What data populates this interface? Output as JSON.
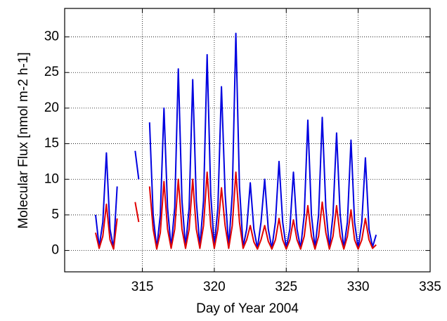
{
  "chart_data": {
    "type": "line",
    "xlabel": "Day of Year 2004",
    "ylabel": "Molecular Flux  [nmol m-2 h-1]",
    "xlim": [
      309.6,
      335
    ],
    "xticks": [
      315,
      320,
      325,
      330,
      335
    ],
    "ylim": [
      -3,
      34
    ],
    "yticks": [
      0,
      5,
      10,
      15,
      20,
      25,
      30
    ],
    "grid": true,
    "x": [
      311.75,
      312,
      312.25,
      312.5,
      312.75,
      313,
      313.25,
      313.5,
      313.75,
      314,
      314.25,
      314.5,
      314.75,
      315,
      315.25,
      315.5,
      315.75,
      316,
      316.25,
      316.5,
      316.75,
      317,
      317.25,
      317.5,
      317.75,
      318,
      318.25,
      318.5,
      318.75,
      319,
      319.25,
      319.5,
      319.75,
      320,
      320.25,
      320.5,
      320.75,
      321,
      321.25,
      321.5,
      321.75,
      322,
      322.25,
      322.5,
      322.75,
      323,
      323.25,
      323.5,
      323.75,
      324,
      324.25,
      324.5,
      324.75,
      325,
      325.25,
      325.5,
      325.75,
      326,
      326.25,
      326.5,
      326.75,
      327,
      327.25,
      327.5,
      327.75,
      328,
      328.25,
      328.5,
      328.75,
      329,
      329.25,
      329.5,
      329.75,
      330,
      330.25,
      330.5,
      330.75,
      331,
      331.25
    ],
    "series": [
      {
        "color": "#0000e0",
        "values": [
          5,
          0.5,
          4,
          13.7,
          3,
          0.3,
          9,
          null,
          null,
          null,
          null,
          14,
          10,
          null,
          null,
          18,
          5,
          0.3,
          5,
          20,
          6,
          0.4,
          6,
          25.5,
          7,
          0.5,
          6,
          24,
          7,
          0.5,
          7,
          27.5,
          8,
          0.5,
          6,
          23,
          8,
          0.5,
          8,
          30.5,
          9,
          0.5,
          3,
          9.5,
          3,
          0.3,
          4,
          10,
          3,
          0.3,
          4,
          12.5,
          4,
          0.3,
          3,
          11,
          3,
          0.3,
          5,
          18.3,
          5,
          0.3,
          5,
          18.7,
          6,
          0.3,
          5,
          16.5,
          5,
          0.3,
          4,
          15.5,
          4,
          0.3,
          4,
          13,
          3,
          0.5,
          2.2
        ]
      },
      {
        "color": "#e00000",
        "values": [
          2.5,
          0.3,
          2,
          6.5,
          1.5,
          0.2,
          4.5,
          null,
          null,
          null,
          null,
          6.8,
          4,
          null,
          null,
          9,
          3,
          0.2,
          2.5,
          9.7,
          3,
          0.3,
          3,
          10,
          3,
          0.3,
          3,
          10,
          3,
          0.3,
          3.5,
          11,
          3.5,
          0.3,
          3,
          8.8,
          3.5,
          0.3,
          3.5,
          11,
          4,
          0.3,
          1.5,
          3.5,
          1.2,
          0.2,
          1.5,
          3.5,
          1.3,
          0.2,
          1.5,
          4.5,
          1.5,
          0.2,
          1.5,
          4.3,
          1.5,
          0.2,
          2,
          6.3,
          2,
          0.2,
          2,
          6.8,
          2.5,
          0.2,
          2,
          6.3,
          2,
          0.2,
          2,
          5.7,
          1.5,
          0.2,
          1.5,
          4.5,
          1.5,
          0.3,
          0.8
        ]
      }
    ]
  }
}
